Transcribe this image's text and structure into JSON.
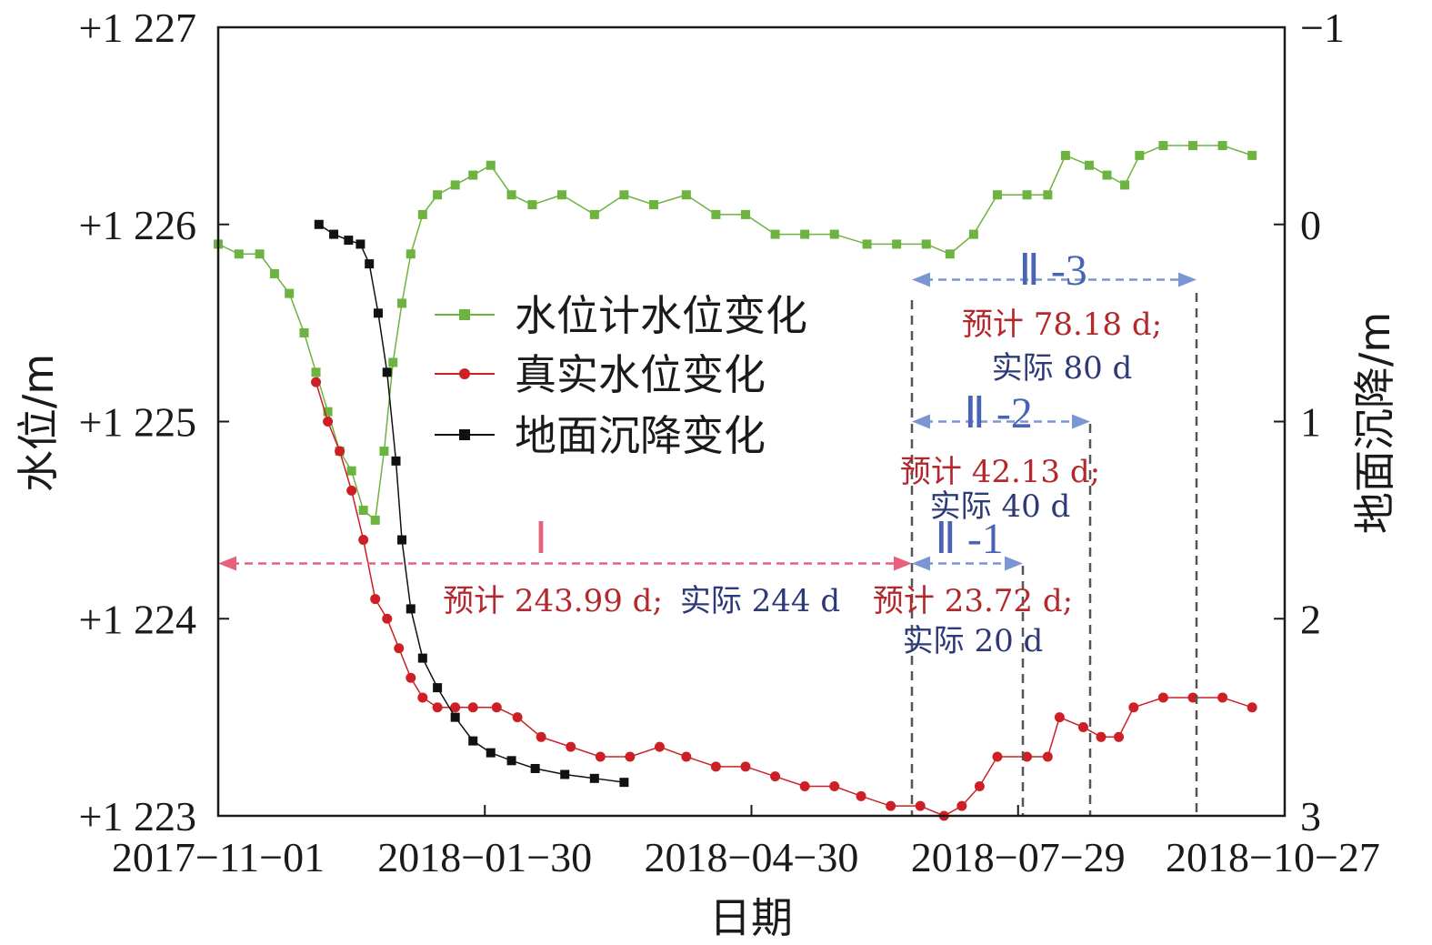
{
  "chart_data": {
    "type": "line",
    "xlabel": "日期",
    "ylabel_left": "水位/m",
    "ylabel_right": "地面沉降/m",
    "x_ticks": [
      "2017−11−01",
      "2018−01−30",
      "2018−04−30",
      "2018−07−29",
      "2018−10−27"
    ],
    "y_left_ticks": [
      "+1 223",
      "+1 224",
      "+1 225",
      "+1 226",
      "+1 227"
    ],
    "y_right_ticks": [
      "3",
      "2",
      "1",
      "0",
      "−1"
    ],
    "ylim_left": [
      1223,
      1227
    ],
    "ylim_right": [
      3,
      -1
    ],
    "xlim": [
      "2017-11-01",
      "2018-10-27"
    ],
    "legend": {
      "placement": "upper-left",
      "entries": [
        {
          "label": "水位计水位变化",
          "color": "#6db33f",
          "marker": "square"
        },
        {
          "label": "真实水位变化",
          "color": "#cc2026",
          "marker": "circle"
        },
        {
          "label": "地面沉降变化",
          "color": "#111111",
          "marker": "square"
        }
      ]
    },
    "series": [
      {
        "name": "水位计水位变化",
        "axis": "left",
        "color": "#6db33f",
        "marker": "square",
        "points": [
          [
            "2017-11-01",
            1225.9
          ],
          [
            "2017-11-08",
            1225.85
          ],
          [
            "2017-11-15",
            1225.85
          ],
          [
            "2017-11-20",
            1225.75
          ],
          [
            "2017-11-25",
            1225.65
          ],
          [
            "2017-11-30",
            1225.45
          ],
          [
            "2017-12-04",
            1225.25
          ],
          [
            "2017-12-08",
            1225.05
          ],
          [
            "2017-12-12",
            1224.85
          ],
          [
            "2017-12-16",
            1224.75
          ],
          [
            "2017-12-20",
            1224.55
          ],
          [
            "2017-12-24",
            1224.5
          ],
          [
            "2017-12-27",
            1224.85
          ],
          [
            "2017-12-30",
            1225.3
          ],
          [
            "2018-01-02",
            1225.6
          ],
          [
            "2018-01-05",
            1225.85
          ],
          [
            "2018-01-09",
            1226.05
          ],
          [
            "2018-01-14",
            1226.15
          ],
          [
            "2018-01-20",
            1226.2
          ],
          [
            "2018-01-26",
            1226.25
          ],
          [
            "2018-02-01",
            1226.3
          ],
          [
            "2018-02-08",
            1226.15
          ],
          [
            "2018-02-15",
            1226.1
          ],
          [
            "2018-02-25",
            1226.15
          ],
          [
            "2018-03-08",
            1226.05
          ],
          [
            "2018-03-18",
            1226.15
          ],
          [
            "2018-03-28",
            1226.1
          ],
          [
            "2018-04-08",
            1226.15
          ],
          [
            "2018-04-18",
            1226.05
          ],
          [
            "2018-04-28",
            1226.05
          ],
          [
            "2018-05-08",
            1225.95
          ],
          [
            "2018-05-18",
            1225.95
          ],
          [
            "2018-05-28",
            1225.95
          ],
          [
            "2018-06-08",
            1225.9
          ],
          [
            "2018-06-18",
            1225.9
          ],
          [
            "2018-06-28",
            1225.9
          ],
          [
            "2018-07-06",
            1225.85
          ],
          [
            "2018-07-14",
            1225.95
          ],
          [
            "2018-07-22",
            1226.15
          ],
          [
            "2018-08-01",
            1226.15
          ],
          [
            "2018-08-08",
            1226.15
          ],
          [
            "2018-08-14",
            1226.35
          ],
          [
            "2018-08-22",
            1226.3
          ],
          [
            "2018-08-28",
            1226.25
          ],
          [
            "2018-09-03",
            1226.2
          ],
          [
            "2018-09-08",
            1226.35
          ],
          [
            "2018-09-16",
            1226.4
          ],
          [
            "2018-09-26",
            1226.4
          ],
          [
            "2018-10-06",
            1226.4
          ],
          [
            "2018-10-16",
            1226.35
          ]
        ]
      },
      {
        "name": "真实水位变化",
        "axis": "left",
        "color": "#cc2026",
        "marker": "circle",
        "points": [
          [
            "2017-12-04",
            1225.2
          ],
          [
            "2017-12-08",
            1225.0
          ],
          [
            "2017-12-12",
            1224.85
          ],
          [
            "2017-12-16",
            1224.65
          ],
          [
            "2017-12-20",
            1224.4
          ],
          [
            "2017-12-24",
            1224.1
          ],
          [
            "2017-12-28",
            1224.0
          ],
          [
            "2018-01-01",
            1223.85
          ],
          [
            "2018-01-05",
            1223.7
          ],
          [
            "2018-01-09",
            1223.6
          ],
          [
            "2018-01-14",
            1223.55
          ],
          [
            "2018-01-20",
            1223.55
          ],
          [
            "2018-01-26",
            1223.55
          ],
          [
            "2018-02-03",
            1223.55
          ],
          [
            "2018-02-10",
            1223.5
          ],
          [
            "2018-02-18",
            1223.4
          ],
          [
            "2018-02-28",
            1223.35
          ],
          [
            "2018-03-10",
            1223.3
          ],
          [
            "2018-03-20",
            1223.3
          ],
          [
            "2018-03-30",
            1223.35
          ],
          [
            "2018-04-08",
            1223.3
          ],
          [
            "2018-04-18",
            1223.25
          ],
          [
            "2018-04-28",
            1223.25
          ],
          [
            "2018-05-08",
            1223.2
          ],
          [
            "2018-05-18",
            1223.15
          ],
          [
            "2018-05-28",
            1223.15
          ],
          [
            "2018-06-06",
            1223.1
          ],
          [
            "2018-06-16",
            1223.05
          ],
          [
            "2018-06-26",
            1223.05
          ],
          [
            "2018-07-04",
            1223.0
          ],
          [
            "2018-07-10",
            1223.05
          ],
          [
            "2018-07-16",
            1223.15
          ],
          [
            "2018-07-22",
            1223.3
          ],
          [
            "2018-08-01",
            1223.3
          ],
          [
            "2018-08-08",
            1223.3
          ],
          [
            "2018-08-12",
            1223.5
          ],
          [
            "2018-08-20",
            1223.45
          ],
          [
            "2018-08-26",
            1223.4
          ],
          [
            "2018-09-01",
            1223.4
          ],
          [
            "2018-09-06",
            1223.55
          ],
          [
            "2018-09-16",
            1223.6
          ],
          [
            "2018-09-26",
            1223.6
          ],
          [
            "2018-10-06",
            1223.6
          ],
          [
            "2018-10-16",
            1223.55
          ]
        ]
      },
      {
        "name": "地面沉降变化",
        "axis": "right",
        "color": "#111111",
        "marker": "square",
        "points": [
          [
            "2017-12-05",
            0.0
          ],
          [
            "2017-12-10",
            0.05
          ],
          [
            "2017-12-15",
            0.08
          ],
          [
            "2017-12-19",
            0.1
          ],
          [
            "2017-12-22",
            0.2
          ],
          [
            "2017-12-25",
            0.45
          ],
          [
            "2017-12-28",
            0.75
          ],
          [
            "2017-12-31",
            1.2
          ],
          [
            "2018-01-02",
            1.6
          ],
          [
            "2018-01-05",
            1.95
          ],
          [
            "2018-01-09",
            2.2
          ],
          [
            "2018-01-14",
            2.35
          ],
          [
            "2018-01-20",
            2.5
          ],
          [
            "2018-01-26",
            2.62
          ],
          [
            "2018-02-01",
            2.68
          ],
          [
            "2018-02-08",
            2.72
          ],
          [
            "2018-02-16",
            2.76
          ],
          [
            "2018-02-26",
            2.79
          ],
          [
            "2018-03-08",
            2.81
          ],
          [
            "2018-03-18",
            2.83
          ]
        ]
      }
    ],
    "annotations": [
      {
        "label": "Ⅰ",
        "color": "#e8607c",
        "x_range": [
          "2017-11-01",
          "2018-07-01"
        ],
        "y": 1224.28,
        "predicted": "预计 243.99 d;",
        "actual": "实际 244 d"
      },
      {
        "label": "Ⅱ -1",
        "color": "#7a96d4",
        "x_range": [
          "2018-07-01",
          "2018-08-08"
        ],
        "y": 1224.28,
        "predicted": "预计 23.72 d;",
        "actual": "实际 20 d"
      },
      {
        "label": "Ⅱ -2",
        "color": "#7a96d4",
        "x_range": [
          "2018-07-01",
          "2018-08-31"
        ],
        "y": 1225.0,
        "predicted": "预计 42.13 d;",
        "actual": "实际 40 d"
      },
      {
        "label": "Ⅱ -3",
        "color": "#7a96d4",
        "x_range": [
          "2018-07-01",
          "2018-10-06"
        ],
        "y": 1225.72,
        "predicted": "预计 78.18 d;",
        "actual": "实际 80 d"
      }
    ]
  }
}
